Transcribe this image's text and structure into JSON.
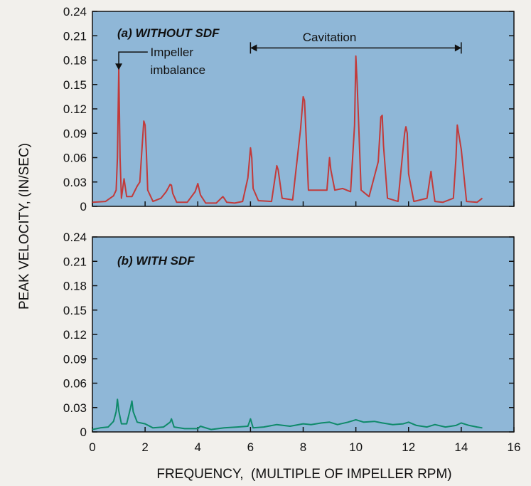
{
  "chart_data": {
    "type": "line",
    "ylabel": "PEAK VELOCITY, (IN/SEC)",
    "xlabel": "FREQUENCY,  (MULTIPLE OF IMPELLER RPM)",
    "colors": {
      "background": "#8fb7d7",
      "top_line": "#c23a3a",
      "bottom_line": "#0f8a6a"
    },
    "grid": false,
    "xlim": [
      0,
      16
    ],
    "xticks": [
      "0",
      "2",
      "4",
      "6",
      "8",
      "10",
      "12",
      "14",
      "16"
    ],
    "xtick_values": [
      0,
      2,
      4,
      6,
      8,
      10,
      12,
      14,
      16
    ],
    "panels": [
      {
        "title": "(a) WITHOUT SDF",
        "ylim": [
          0,
          0.24
        ],
        "yticks": [
          "0",
          "0.03",
          "0.06",
          "0.09",
          "0.12",
          "0.15",
          "0.18",
          "0.21",
          "0.24"
        ],
        "ytick_values": [
          0,
          0.03,
          0.06,
          0.09,
          0.12,
          0.15,
          0.18,
          0.21,
          0.24
        ],
        "annotations": [
          {
            "text": "Impeller",
            "x": 2.2,
            "y": 0.185
          },
          {
            "text": "imbalance",
            "x": 2.2,
            "y": 0.163
          },
          {
            "text": "Cavitation",
            "x": 9.0,
            "y": 0.203,
            "from": 6.0,
            "to": 14.0,
            "y_arrow": 0.195
          }
        ],
        "series": [
          {
            "x": [
              0,
              0.5,
              0.8,
              0.9,
              0.95,
              1.0,
              1.05,
              1.1,
              1.2,
              1.3,
              1.5,
              1.7,
              1.8,
              1.9,
              1.95,
              2.0,
              2.05,
              2.1,
              2.3,
              2.6,
              2.8,
              2.95,
              3.0,
              3.05,
              3.2,
              3.6,
              3.9,
              4.0,
              4.1,
              4.3,
              4.7,
              4.95,
              5.0,
              5.1,
              5.4,
              5.7,
              5.9,
              6.0,
              6.05,
              6.1,
              6.3,
              6.8,
              7.0,
              7.05,
              7.2,
              7.6,
              7.9,
              8.0,
              8.05,
              8.1,
              8.2,
              8.5,
              8.9,
              9.0,
              9.05,
              9.2,
              9.5,
              9.8,
              9.95,
              10.0,
              10.05,
              10.2,
              10.5,
              10.85,
              10.95,
              11.0,
              11.05,
              11.2,
              11.6,
              11.85,
              11.9,
              11.95,
              12.0,
              12.2,
              12.7,
              12.85,
              12.9,
              13.0,
              13.3,
              13.7,
              13.8,
              13.85,
              13.9,
              14.0,
              14.2,
              14.6,
              14.8
            ],
            "values": [
              0.005,
              0.006,
              0.013,
              0.02,
              0.06,
              0.17,
              0.06,
              0.01,
              0.034,
              0.012,
              0.012,
              0.025,
              0.03,
              0.08,
              0.105,
              0.1,
              0.065,
              0.02,
              0.006,
              0.01,
              0.018,
              0.027,
              0.026,
              0.016,
              0.005,
              0.005,
              0.018,
              0.028,
              0.014,
              0.004,
              0.004,
              0.012,
              0.01,
              0.005,
              0.004,
              0.006,
              0.035,
              0.072,
              0.06,
              0.022,
              0.007,
              0.006,
              0.05,
              0.045,
              0.01,
              0.008,
              0.095,
              0.135,
              0.13,
              0.095,
              0.02,
              0.02,
              0.02,
              0.06,
              0.045,
              0.02,
              0.022,
              0.018,
              0.1,
              0.185,
              0.15,
              0.02,
              0.012,
              0.055,
              0.11,
              0.112,
              0.075,
              0.01,
              0.006,
              0.09,
              0.098,
              0.09,
              0.04,
              0.006,
              0.01,
              0.043,
              0.03,
              0.006,
              0.005,
              0.01,
              0.06,
              0.1,
              0.09,
              0.07,
              0.006,
              0.005,
              0.01
            ]
          }
        ]
      },
      {
        "title": "(b) WITH SDF",
        "ylim": [
          0,
          0.24
        ],
        "yticks": [
          "0",
          "0.03",
          "0.06",
          "0.09",
          "0.12",
          "0.15",
          "0.18",
          "0.21",
          "0.24"
        ],
        "ytick_values": [
          0,
          0.03,
          0.06,
          0.09,
          0.12,
          0.15,
          0.18,
          0.21,
          0.24
        ],
        "series": [
          {
            "x": [
              0,
              0.3,
              0.6,
              0.8,
              0.9,
              0.95,
              1.0,
              1.1,
              1.3,
              1.45,
              1.5,
              1.55,
              1.7,
              2.0,
              2.3,
              2.7,
              2.95,
              3.0,
              3.1,
              3.5,
              4.0,
              4.1,
              4.5,
              5.0,
              5.5,
              5.9,
              6.0,
              6.1,
              6.5,
              7.0,
              7.5,
              8.0,
              8.3,
              8.7,
              9.0,
              9.3,
              9.7,
              10.0,
              10.3,
              10.7,
              11.0,
              11.4,
              11.8,
              12.0,
              12.3,
              12.7,
              13.0,
              13.4,
              13.8,
              14.0,
              14.3,
              14.6,
              14.8
            ],
            "values": [
              0.003,
              0.005,
              0.006,
              0.013,
              0.025,
              0.04,
              0.026,
              0.01,
              0.01,
              0.03,
              0.038,
              0.025,
              0.012,
              0.01,
              0.005,
              0.006,
              0.012,
              0.016,
              0.006,
              0.004,
              0.004,
              0.007,
              0.003,
              0.005,
              0.006,
              0.007,
              0.016,
              0.005,
              0.006,
              0.009,
              0.007,
              0.01,
              0.009,
              0.011,
              0.012,
              0.009,
              0.012,
              0.015,
              0.012,
              0.013,
              0.011,
              0.009,
              0.01,
              0.012,
              0.008,
              0.006,
              0.009,
              0.006,
              0.008,
              0.011,
              0.008,
              0.006,
              0.005
            ]
          }
        ]
      }
    ]
  }
}
